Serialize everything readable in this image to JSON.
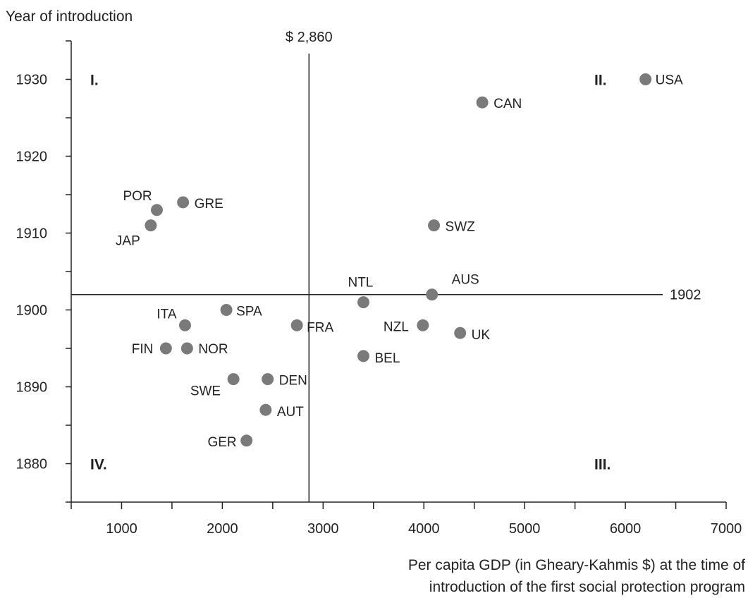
{
  "chart_data": {
    "type": "scatter",
    "ylabel": "Year of introduction",
    "xlabel_line1": "Per capita GDP (in Gheary-Kahmis $) at the time of",
    "xlabel_line2": "introduction of the first social protection program",
    "xlim": [
      500,
      7000
    ],
    "ylim": [
      1875,
      1935
    ],
    "x_ticks": [
      1000,
      2000,
      3000,
      4000,
      5000,
      6000,
      7000
    ],
    "y_ticks": [
      1880,
      1890,
      1900,
      1910,
      1920,
      1930
    ],
    "reference_lines": {
      "vertical": {
        "x": 2860,
        "label": "$ 2,860"
      },
      "horizontal": {
        "y": 1902,
        "label": "1902"
      }
    },
    "quadrant_labels": [
      {
        "label": "I.",
        "position": "top-left"
      },
      {
        "label": "II.",
        "position": "top-right"
      },
      {
        "label": "III.",
        "position": "bottom-right"
      },
      {
        "label": "IV.",
        "position": "bottom-left"
      }
    ],
    "point_color": "#7a7a7a",
    "points": [
      {
        "label": "USA",
        "x": 6200,
        "y": 1930
      },
      {
        "label": "CAN",
        "x": 4580,
        "y": 1927
      },
      {
        "label": "SWZ",
        "x": 4100,
        "y": 1911
      },
      {
        "label": "AUS",
        "x": 4080,
        "y": 1902
      },
      {
        "label": "NTL",
        "x": 3400,
        "y": 1901
      },
      {
        "label": "NZL",
        "x": 3990,
        "y": 1898
      },
      {
        "label": "UK",
        "x": 4360,
        "y": 1897
      },
      {
        "label": "BEL",
        "x": 3400,
        "y": 1894
      },
      {
        "label": "FRA",
        "x": 2740,
        "y": 1898
      },
      {
        "label": "SPA",
        "x": 2040,
        "y": 1900
      },
      {
        "label": "ITA",
        "x": 1630,
        "y": 1898
      },
      {
        "label": "FIN",
        "x": 1440,
        "y": 1895
      },
      {
        "label": "NOR",
        "x": 1650,
        "y": 1895
      },
      {
        "label": "SWE",
        "x": 2110,
        "y": 1891
      },
      {
        "label": "DEN",
        "x": 2450,
        "y": 1891
      },
      {
        "label": "AUT",
        "x": 2430,
        "y": 1887
      },
      {
        "label": "GER",
        "x": 2240,
        "y": 1883
      },
      {
        "label": "POR",
        "x": 1350,
        "y": 1913
      },
      {
        "label": "GRE",
        "x": 1610,
        "y": 1914
      },
      {
        "label": "JAP",
        "x": 1290,
        "y": 1911
      }
    ]
  }
}
